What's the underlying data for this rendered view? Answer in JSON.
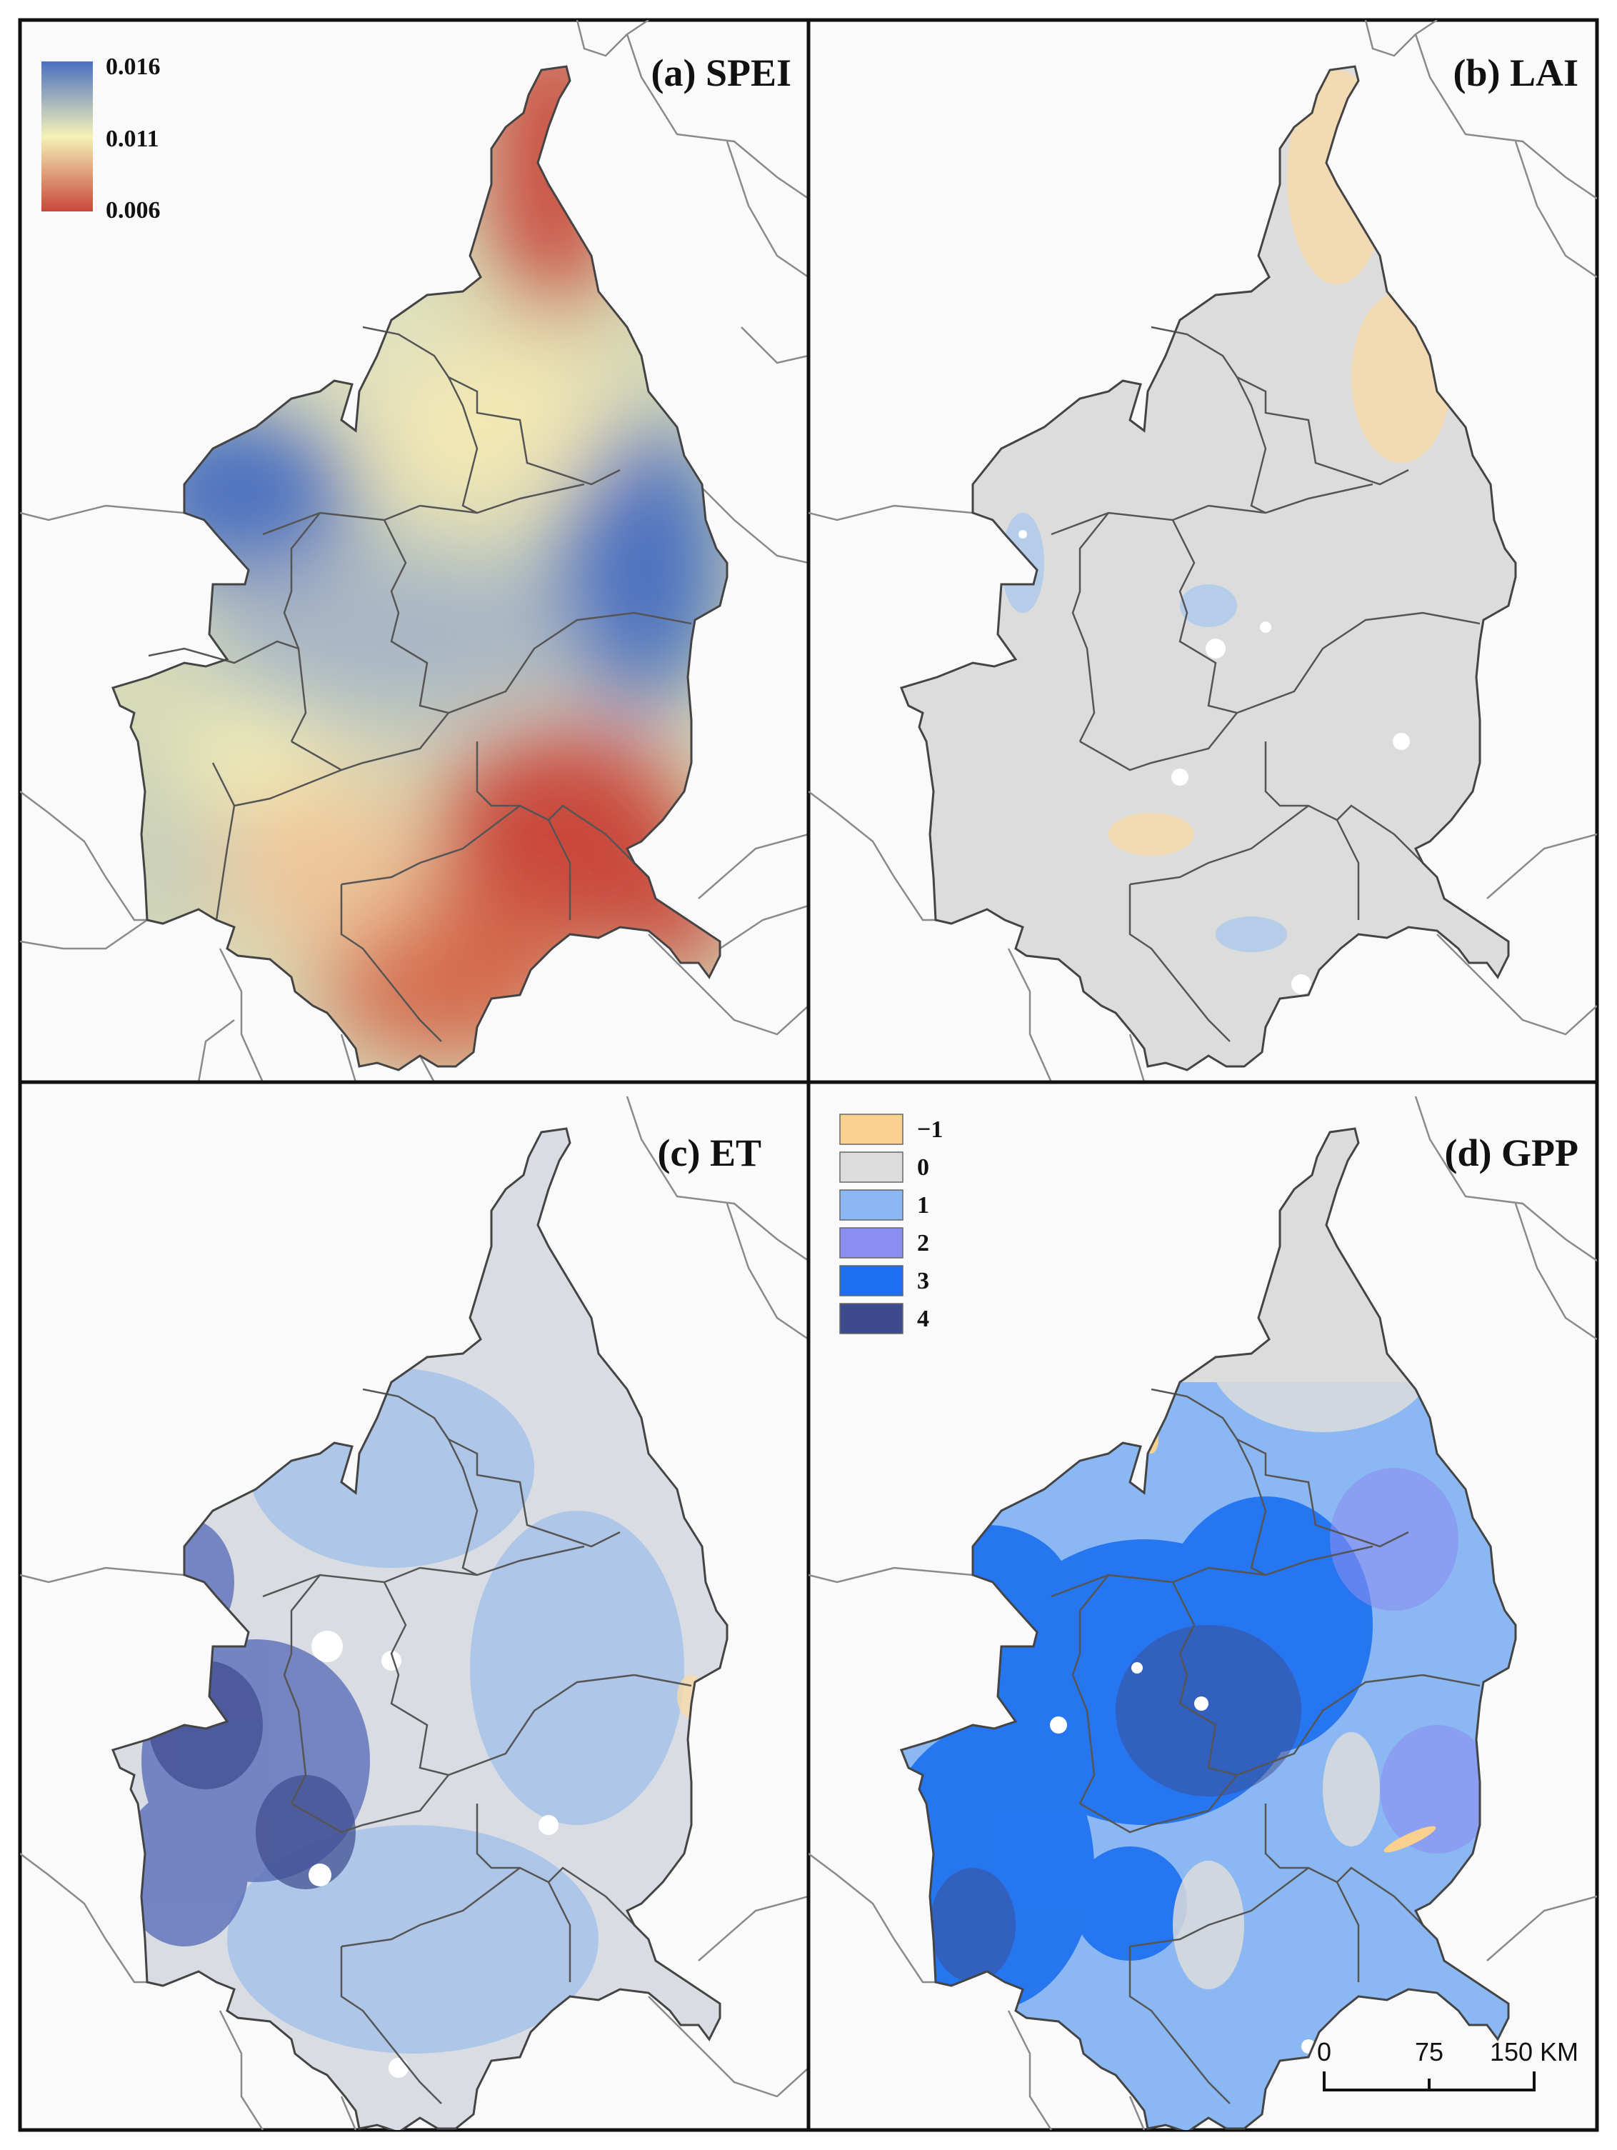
{
  "panels": [
    {
      "id": "a",
      "title": "(a) SPEI"
    },
    {
      "id": "b",
      "title": "(b) LAI"
    },
    {
      "id": "c",
      "title": "(c) ET"
    },
    {
      "id": "d",
      "title": "(d) GPP"
    }
  ],
  "spei_legend": {
    "max_label": "0.016",
    "mid_label": "0.011",
    "min_label": "0.006",
    "colors": {
      "high": "#4a6fc0",
      "mid": "#f5f2b8",
      "low": "#c9473a"
    }
  },
  "class_legend": {
    "items": [
      {
        "label": "−1",
        "color": "#f9d08e"
      },
      {
        "label": "0",
        "color": "#dcdcdc"
      },
      {
        "label": "1",
        "color": "#8bb8f2"
      },
      {
        "label": "2",
        "color": "#8a8ef0"
      },
      {
        "label": "3",
        "color": "#1b6ff0"
      },
      {
        "label": "4",
        "color": "#3d4a8c"
      }
    ]
  },
  "scale_bar": {
    "ticks": [
      "0",
      "75",
      "150 KM"
    ]
  }
}
